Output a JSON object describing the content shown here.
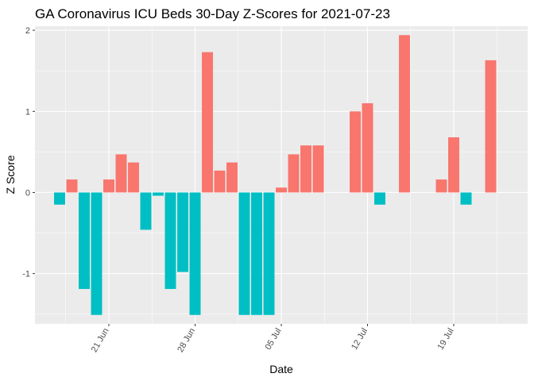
{
  "chart_data": {
    "type": "bar",
    "title": "GA Coronavirus ICU Beds 30-Day Z-Scores for 2021-07-23",
    "xlabel": "Date",
    "ylabel": "Z Score",
    "x_ticks": [
      {
        "label": "21 Jun",
        "date": "2021-06-21"
      },
      {
        "label": "28 Jun",
        "date": "2021-06-28"
      },
      {
        "label": "05 Jul",
        "date": "2021-07-05"
      },
      {
        "label": "12 Jul",
        "date": "2021-07-12"
      },
      {
        "label": "19 Jul",
        "date": "2021-07-19"
      }
    ],
    "y_ticks": [
      -1,
      0,
      1,
      2
    ],
    "ylim": [
      -1.62,
      2.05
    ],
    "xlim": [
      "2021-06-15",
      "2021-07-25"
    ],
    "colors": {
      "positive": "#F8766D",
      "negative": "#00BFC4",
      "panel": "#EBEBEB",
      "grid": "#FFFFFF"
    },
    "grid": true,
    "legend": "none",
    "x": [
      "2021-06-17",
      "2021-06-18",
      "2021-06-19",
      "2021-06-20",
      "2021-06-21",
      "2021-06-22",
      "2021-06-23",
      "2021-06-24",
      "2021-06-25",
      "2021-06-26",
      "2021-06-27",
      "2021-06-28",
      "2021-06-29",
      "2021-06-30",
      "2021-07-01",
      "2021-07-02",
      "2021-07-03",
      "2021-07-04",
      "2021-07-05",
      "2021-07-06",
      "2021-07-07",
      "2021-07-08",
      "2021-07-09",
      "2021-07-10",
      "2021-07-11",
      "2021-07-12",
      "2021-07-13",
      "2021-07-14",
      "2021-07-15",
      "2021-07-16",
      "2021-07-17",
      "2021-07-18",
      "2021-07-19",
      "2021-07-20",
      "2021-07-21",
      "2021-07-22",
      "2021-07-23"
    ],
    "values": [
      -0.15,
      0.16,
      -1.19,
      -1.51,
      0.16,
      0.47,
      0.37,
      -0.46,
      -0.04,
      -1.19,
      -0.98,
      -1.51,
      1.73,
      0.27,
      0.37,
      -1.51,
      -1.51,
      -1.51,
      0.06,
      0.47,
      0.58,
      0.58,
      0.0,
      0.0,
      1.0,
      1.1,
      -0.15,
      0.0,
      1.94,
      0.0,
      0.0,
      0.16,
      0.68,
      -0.15,
      0.0,
      1.63,
      null
    ]
  }
}
